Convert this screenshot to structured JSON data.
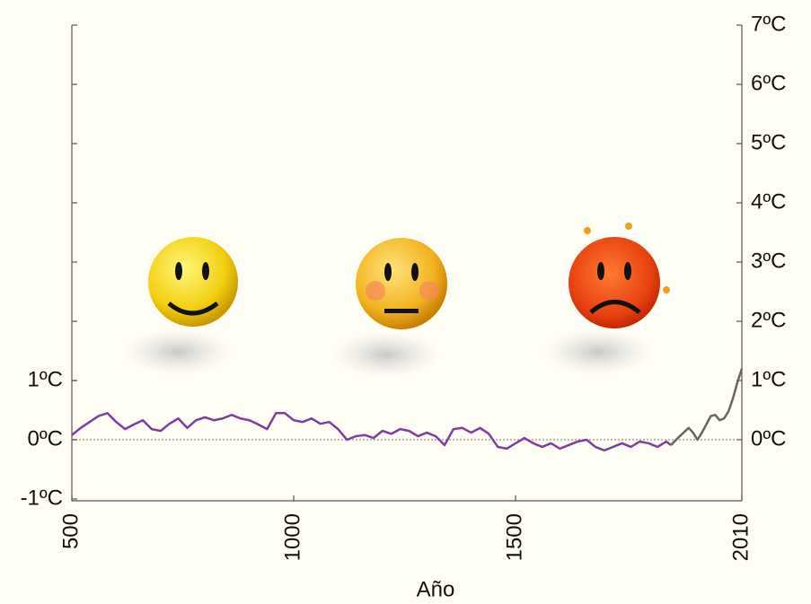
{
  "chart_data": {
    "type": "line",
    "x_label": "Año",
    "xlim": [
      500,
      2010
    ],
    "xticks": [
      500,
      1000,
      1500,
      2010
    ],
    "ylim": [
      -1,
      7
    ],
    "yticks": [
      {
        "value": -1,
        "label": "-1ºC"
      },
      {
        "value": 0,
        "label": "0ºC"
      },
      {
        "value": 1,
        "label": "1ºC"
      }
    ],
    "y2lim": [
      -1,
      7
    ],
    "y2ticks": [
      {
        "value": 0,
        "label": "0ºC"
      },
      {
        "value": 1,
        "label": "1ºC"
      },
      {
        "value": 2,
        "label": "2ºC"
      },
      {
        "value": 3,
        "label": "3ºC"
      },
      {
        "value": 4,
        "label": "4ºC"
      },
      {
        "value": 5,
        "label": "5ºC"
      },
      {
        "value": 6,
        "label": "6ºC"
      },
      {
        "value": 7,
        "label": "7ºC"
      }
    ],
    "zero_line": true,
    "series": [
      {
        "color": "#7b3fa0",
        "x": [
          500,
          520,
          540,
          560,
          580,
          600,
          620,
          640,
          660,
          680,
          700,
          720,
          740,
          760,
          780,
          800,
          820,
          840,
          860,
          880,
          900,
          920,
          940,
          960,
          980,
          1000,
          1020,
          1040,
          1060,
          1080,
          1100,
          1120,
          1140,
          1160,
          1180,
          1200,
          1220,
          1240,
          1260,
          1280,
          1300,
          1320,
          1340,
          1360,
          1380,
          1400,
          1420,
          1440,
          1460,
          1480,
          1500,
          1520,
          1540,
          1560,
          1580,
          1600,
          1620,
          1640,
          1660,
          1680,
          1700,
          1720,
          1740,
          1760,
          1780,
          1800,
          1820,
          1840,
          1850
        ],
        "values": [
          0.08,
          0.2,
          0.3,
          0.4,
          0.45,
          0.3,
          0.18,
          0.26,
          0.33,
          0.18,
          0.15,
          0.27,
          0.36,
          0.2,
          0.33,
          0.38,
          0.33,
          0.36,
          0.42,
          0.36,
          0.33,
          0.26,
          0.18,
          0.45,
          0.45,
          0.33,
          0.3,
          0.36,
          0.27,
          0.3,
          0.18,
          0.0,
          0.06,
          0.08,
          0.03,
          0.15,
          0.1,
          0.18,
          0.15,
          0.06,
          0.12,
          0.06,
          -0.09,
          0.18,
          0.2,
          0.12,
          0.2,
          0.1,
          -0.12,
          -0.15,
          -0.06,
          0.03,
          -0.06,
          -0.12,
          -0.06,
          -0.15,
          -0.09,
          -0.03,
          0.0,
          -0.12,
          -0.18,
          -0.12,
          -0.06,
          -0.12,
          -0.03,
          -0.06,
          -0.12,
          -0.03,
          -0.09
        ]
      },
      {
        "color": "#666666",
        "x": [
          1850,
          1870,
          1890,
          1900,
          1910,
          1920,
          1940,
          1950,
          1960,
          1970,
          1980,
          1990,
          2000,
          2010
        ],
        "values": [
          -0.09,
          0.06,
          0.2,
          0.12,
          0.0,
          0.12,
          0.4,
          0.42,
          0.33,
          0.36,
          0.48,
          0.7,
          0.97,
          1.2
        ]
      }
    ]
  }
}
